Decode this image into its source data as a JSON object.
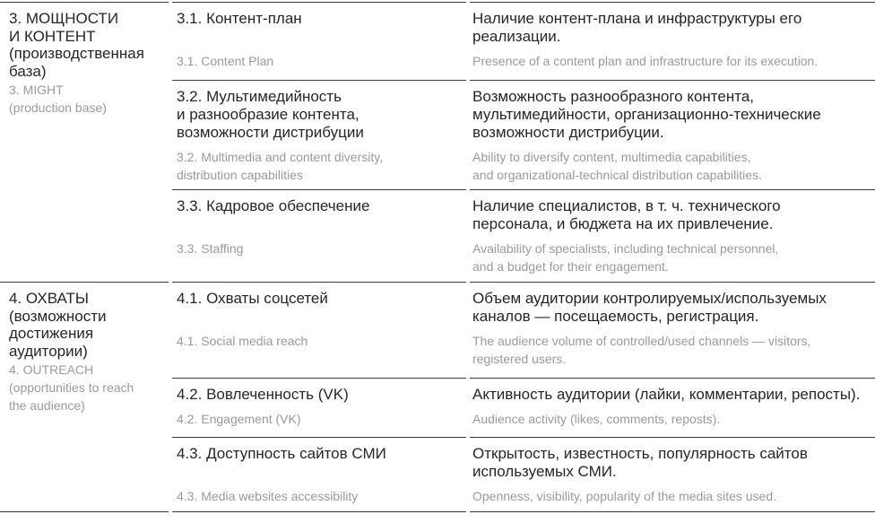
{
  "groups": [
    {
      "ru": "3. МОЩНОСТИ\nИ КОНТЕНТ\n(производственная\nбаза)",
      "en": "3. MIGHT\n(production base)",
      "rows": [
        {
          "title_ru": "3.1. Контент-план",
          "title_en": "3.1. Content Plan",
          "desc_ru": "Наличие контент-плана и инфраструктуры его\nреализации.",
          "desc_en": "Presence of a content plan and infrastructure for its execution."
        },
        {
          "title_ru": "3.2. Мультимедийность\nи разнообразие контента,\nвозможности дистрибуции",
          "title_en": "3.2. Multimedia and content diversity,\ndistribution capabilities",
          "desc_ru": "Возможность разнообразного контента,\nмультимедийности, организационно-технические\nвозможности дистрибуции.",
          "desc_en": "Ability to diversify content, multimedia capabilities,\nand organizational-technical distribution capabilities."
        },
        {
          "title_ru": "3.3. Кадровое обеспечение",
          "title_en": "3.3. Staffing",
          "desc_ru": "Наличие специалистов, в т. ч. технического\nперсонала, и бюджета на их привлечение.",
          "desc_en": "Availability of specialists, including technical personnel,\nand a budget for their engagement."
        }
      ]
    },
    {
      "ru": "4. ОХВАТЫ\n(возможности\nдостижения\nаудитории)",
      "en": "4. OUTREACH\n(opportunities to reach\nthe audience)",
      "rows": [
        {
          "title_ru": "4.1. Охваты соцсетей",
          "title_en": "4.1. Social media reach",
          "desc_ru": "Объем аудитории контролируемых/используемых\nканалов — посещаемость, регистрация.",
          "desc_en": "The audience volume of controlled/used channels — visitors,\nregistered users."
        },
        {
          "title_ru": "4.2. Вовлеченность (VK)",
          "title_en": "4.2. Engagement (VK)",
          "desc_ru": "Активность аудитории (лайки, комментарии, репосты).",
          "desc_en": "Audience activity (likes, comments, reposts)."
        },
        {
          "title_ru": "4.3. Доступность сайтов СМИ",
          "title_en": "4.3. Media websites accessibility",
          "desc_ru": "Открытость, известность, популярность сайтов\nиспользуемых СМИ.",
          "desc_en": "Openness, visibility, popularity of the media sites used."
        }
      ]
    }
  ]
}
